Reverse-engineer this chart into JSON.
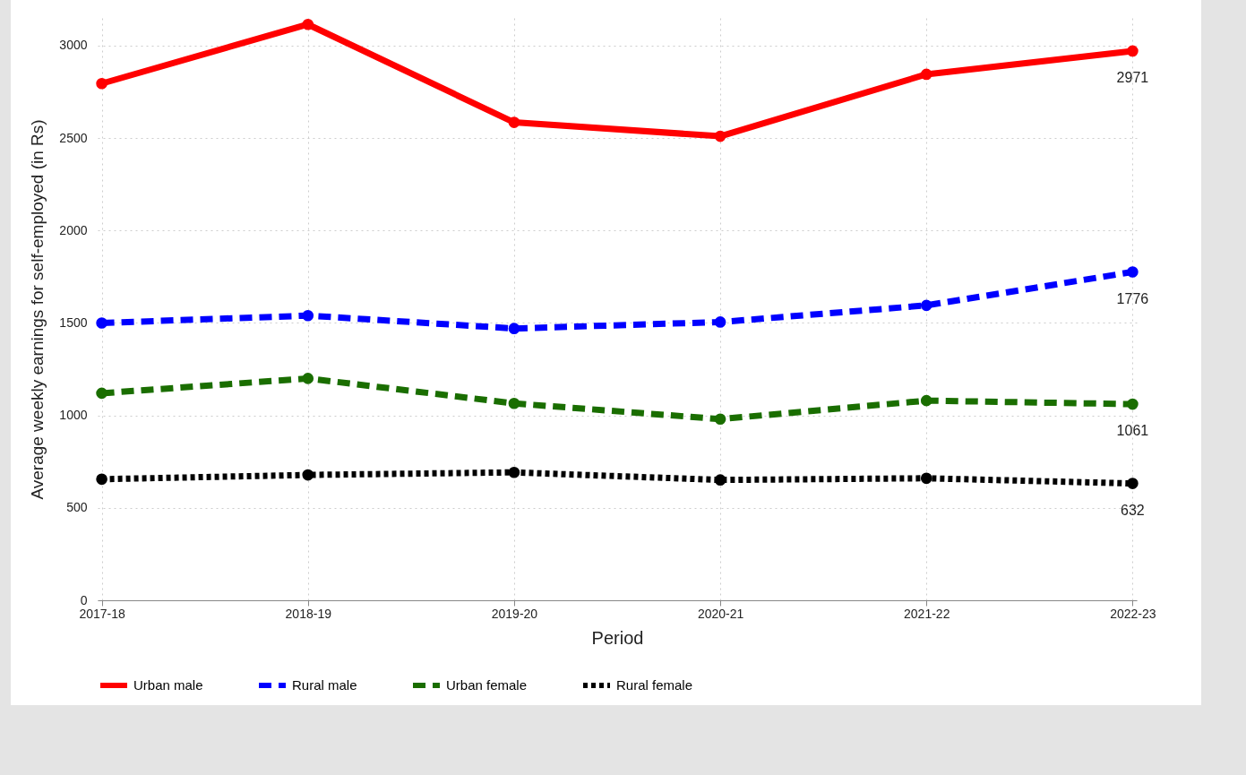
{
  "chart_data": {
    "type": "line",
    "xlabel": "Period",
    "ylabel": "Average weekly earnings for self-employed (in Rs)",
    "categories": [
      "2017-18",
      "2018-19",
      "2019-20",
      "2020-21",
      "2021-22",
      "2022-23"
    ],
    "series": [
      {
        "name": "Urban male",
        "color": "#ff0000",
        "line_style": "solid",
        "values": [
          2795,
          3115,
          2585,
          2510,
          2845,
          2971
        ],
        "value_labels": [
          null,
          null,
          null,
          null,
          null,
          "2971"
        ]
      },
      {
        "name": "Rural male",
        "color": "#0000ff",
        "line_style": "dashed",
        "values": [
          1500,
          1540,
          1470,
          1505,
          1595,
          1776
        ],
        "value_labels": [
          null,
          null,
          null,
          null,
          null,
          "1776"
        ]
      },
      {
        "name": "Urban female",
        "color": "#1a6e00",
        "line_style": "dashed",
        "values": [
          1120,
          1200,
          1065,
          980,
          1080,
          1061
        ],
        "value_labels": [
          null,
          null,
          null,
          null,
          null,
          "1061"
        ]
      },
      {
        "name": "Rural female",
        "color": "#000000",
        "line_style": "dotted",
        "values": [
          655,
          678,
          692,
          651,
          660,
          632
        ],
        "value_labels": [
          null,
          null,
          null,
          null,
          null,
          "632"
        ]
      }
    ],
    "ylim": [
      0,
      3150
    ],
    "yticks": [
      0,
      500,
      1000,
      1500,
      2000,
      2500,
      3000
    ],
    "grid": true,
    "legend": "bottom",
    "marker": "circle"
  }
}
